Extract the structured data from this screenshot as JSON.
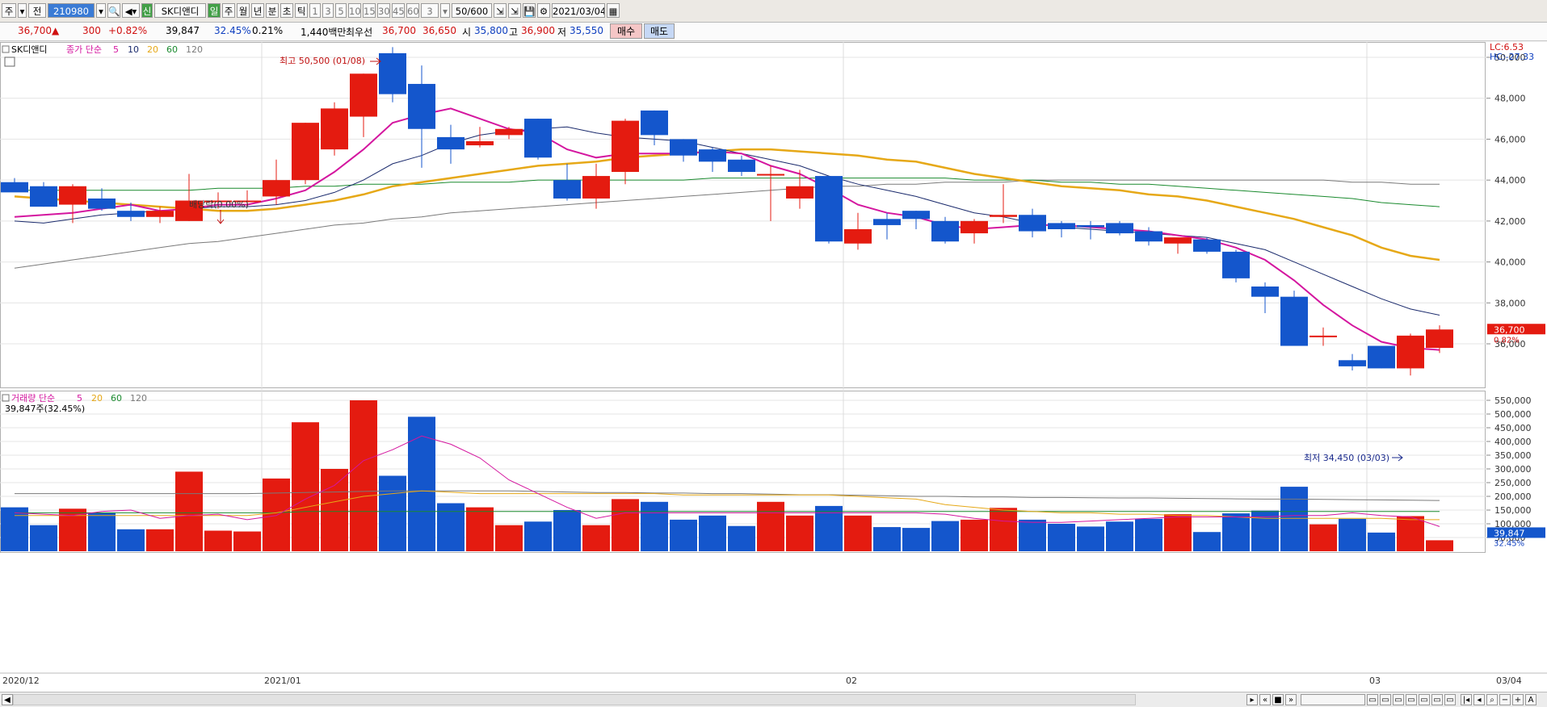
{
  "toolbar": {
    "items": [
      "주",
      "▾",
      "전",
      "210980",
      "▾",
      "🔍",
      "◀▾",
      "신",
      "SK디앤디",
      "일",
      "주",
      "월",
      "년",
      "분",
      "초",
      "틱",
      "1",
      "3",
      "5",
      "10",
      "15",
      "30",
      "45",
      "60",
      "3",
      "▾",
      "50/600",
      "⇲",
      "⇲",
      "💾",
      "⚙",
      "2021/03/04",
      "▦"
    ]
  },
  "info": {
    "price": "36,700",
    "arrow": "▲",
    "change": "300",
    "change_pct": "+0.82%",
    "volume": "39,847",
    "vol_ratio": "32.45%",
    "turnover": "0.21%",
    "amount": "1,440백만",
    "best_label": "최우선",
    "ask": "36,700",
    "bid": "36,650",
    "open_label": "시",
    "open": "35,800",
    "high_label": "고",
    "high": "36,900",
    "low_label": "저",
    "low": "35,550",
    "buy_label": "매수",
    "sell_label": "매도"
  },
  "price_legend": {
    "name": "SK디앤디",
    "ma_label": "종가 단순",
    "periods": [
      "5",
      "10",
      "20",
      "60",
      "120"
    ]
  },
  "volume_legend": {
    "name": "거래량 단순",
    "periods": [
      "5",
      "20",
      "60",
      "120"
    ],
    "current": "39,847주(32.45%)"
  },
  "annotations": {
    "high": "최고 50,500 (01/08)",
    "low": "최저 34,450 (03/03)",
    "dividend": "배당락(0.00%)",
    "lc": "LC:6.53",
    "hc": "HC:-27.33",
    "price_badge": "36,700",
    "price_badge_pct": "0.82%",
    "vol_badge": "39,847",
    "vol_badge_pct": "32.45%"
  },
  "x_axis_labels": [
    {
      "text": "2020/12",
      "index": 0
    },
    {
      "text": "2021/01",
      "index": 9
    },
    {
      "text": "02",
      "index": 29
    },
    {
      "text": "03",
      "index": 47
    },
    {
      "text": "03/04",
      "index": 51
    }
  ],
  "colors": {
    "up": "#e41b10",
    "down": "#1456cc",
    "ma5": "#d4169f",
    "ma10": "#1a2a6c",
    "ma20": "#e6a817",
    "ma60": "#1a8a2e",
    "ma120": "#7a7a7a"
  },
  "chart_data": [
    {
      "type": "candlestick",
      "title": "SK디앤디",
      "ylim": [
        34000,
        51500
      ],
      "y_ticks": [
        36000,
        38000,
        40000,
        42000,
        44000,
        46000,
        48000,
        50000
      ],
      "candles": [
        {
          "o": 43900,
          "h": 44100,
          "l": 43500,
          "c": 43400
        },
        {
          "o": 43700,
          "h": 43900,
          "l": 42700,
          "c": 42700
        },
        {
          "o": 42800,
          "h": 43800,
          "l": 41900,
          "c": 43700
        },
        {
          "o": 43100,
          "h": 43600,
          "l": 42500,
          "c": 42600
        },
        {
          "o": 42500,
          "h": 42900,
          "l": 42000,
          "c": 42200
        },
        {
          "o": 42200,
          "h": 42700,
          "l": 41900,
          "c": 42500
        },
        {
          "o": 42000,
          "h": 44300,
          "l": 42000,
          "c": 43000
        },
        {
          "o": 43000,
          "h": 43400,
          "l": 42600,
          "c": 43000
        },
        {
          "o": 43000,
          "h": 43500,
          "l": 42700,
          "c": 43000
        },
        {
          "o": 43200,
          "h": 45000,
          "l": 42800,
          "c": 44000
        },
        {
          "o": 44000,
          "h": 46800,
          "l": 43800,
          "c": 46800
        },
        {
          "o": 45500,
          "h": 47800,
          "l": 45200,
          "c": 47500
        },
        {
          "o": 47100,
          "h": 49200,
          "l": 46100,
          "c": 49200
        },
        {
          "o": 50200,
          "h": 50500,
          "l": 47800,
          "c": 48200
        },
        {
          "o": 48700,
          "h": 49600,
          "l": 44600,
          "c": 46500
        },
        {
          "o": 46100,
          "h": 46700,
          "l": 44800,
          "c": 45500
        },
        {
          "o": 45700,
          "h": 46600,
          "l": 45600,
          "c": 45900
        },
        {
          "o": 46200,
          "h": 46600,
          "l": 46000,
          "c": 46500
        },
        {
          "o": 47000,
          "h": 47000,
          "l": 45000,
          "c": 45100
        },
        {
          "o": 44000,
          "h": 44800,
          "l": 43000,
          "c": 43100
        },
        {
          "o": 43100,
          "h": 44800,
          "l": 42600,
          "c": 44200
        },
        {
          "o": 44400,
          "h": 47000,
          "l": 43800,
          "c": 46900
        },
        {
          "o": 47400,
          "h": 47400,
          "l": 45700,
          "c": 46200
        },
        {
          "o": 46000,
          "h": 46000,
          "l": 44900,
          "c": 45200
        },
        {
          "o": 45500,
          "h": 45600,
          "l": 44400,
          "c": 44900
        },
        {
          "o": 45000,
          "h": 45200,
          "l": 44200,
          "c": 44400
        },
        {
          "o": 44300,
          "h": 44700,
          "l": 42000,
          "c": 44300
        },
        {
          "o": 43100,
          "h": 44500,
          "l": 42600,
          "c": 43700
        },
        {
          "o": 44200,
          "h": 44200,
          "l": 40900,
          "c": 41000
        },
        {
          "o": 40900,
          "h": 42400,
          "l": 40600,
          "c": 41600
        },
        {
          "o": 42100,
          "h": 42400,
          "l": 41100,
          "c": 41800
        },
        {
          "o": 42500,
          "h": 42500,
          "l": 41600,
          "c": 42100
        },
        {
          "o": 42000,
          "h": 42200,
          "l": 40900,
          "c": 41000
        },
        {
          "o": 41400,
          "h": 42100,
          "l": 40900,
          "c": 42000
        },
        {
          "o": 42200,
          "h": 43800,
          "l": 41900,
          "c": 42300
        },
        {
          "o": 42300,
          "h": 42600,
          "l": 41200,
          "c": 41500
        },
        {
          "o": 41900,
          "h": 42000,
          "l": 41200,
          "c": 41600
        },
        {
          "o": 41800,
          "h": 42000,
          "l": 41100,
          "c": 41700
        },
        {
          "o": 41900,
          "h": 42000,
          "l": 41300,
          "c": 41400
        },
        {
          "o": 41500,
          "h": 41700,
          "l": 40800,
          "c": 41000
        },
        {
          "o": 40900,
          "h": 41100,
          "l": 40400,
          "c": 41200
        },
        {
          "o": 41100,
          "h": 41200,
          "l": 40400,
          "c": 40500
        },
        {
          "o": 40500,
          "h": 40600,
          "l": 39000,
          "c": 39200
        },
        {
          "o": 38800,
          "h": 39000,
          "l": 37500,
          "c": 38300
        },
        {
          "o": 38300,
          "h": 38600,
          "l": 35900,
          "c": 35900
        },
        {
          "o": 36400,
          "h": 36800,
          "l": 35900,
          "c": 36400
        },
        {
          "o": 35200,
          "h": 35500,
          "l": 34700,
          "c": 34900
        },
        {
          "o": 35900,
          "h": 35900,
          "l": 34800,
          "c": 34800
        },
        {
          "o": 34800,
          "h": 36500,
          "l": 34450,
          "c": 36400
        },
        {
          "o": 35800,
          "h": 36900,
          "l": 35550,
          "c": 36700
        }
      ],
      "ma5": [
        42200,
        42300,
        42400,
        42600,
        42800,
        42500,
        42600,
        42800,
        42800,
        43100,
        43500,
        44400,
        45500,
        46800,
        47200,
        47500,
        47000,
        46500,
        46300,
        45500,
        45100,
        45300,
        45300,
        45300,
        45400,
        45300,
        44700,
        44300,
        43600,
        42800,
        42400,
        42200,
        41800,
        41600,
        41700,
        41800,
        41800,
        41700,
        41600,
        41500,
        41300,
        41100,
        40700,
        40100,
        39100,
        37900,
        36900,
        36100,
        35800,
        35700
      ],
      "ma10": [
        42000,
        41900,
        42100,
        42300,
        42400,
        42500,
        42600,
        42700,
        42700,
        42800,
        43000,
        43400,
        44000,
        44800,
        45200,
        45800,
        46200,
        46400,
        46500,
        46600,
        46300,
        46100,
        46000,
        45900,
        45600,
        45300,
        45000,
        44700,
        44200,
        43800,
        43500,
        43200,
        42800,
        42400,
        42200,
        41900,
        41700,
        41600,
        41500,
        41400,
        41300,
        41200,
        40900,
        40600,
        40000,
        39400,
        38800,
        38200,
        37700,
        37400
      ],
      "ma20": [
        43200,
        43100,
        43000,
        42900,
        42800,
        42700,
        42600,
        42500,
        42500,
        42600,
        42800,
        43000,
        43300,
        43700,
        43900,
        44100,
        44300,
        44500,
        44700,
        44800,
        44900,
        45100,
        45200,
        45300,
        45400,
        45500,
        45500,
        45400,
        45300,
        45200,
        45000,
        44900,
        44600,
        44300,
        44100,
        43900,
        43700,
        43600,
        43500,
        43300,
        43200,
        43000,
        42700,
        42400,
        42100,
        41700,
        41300,
        40700,
        40300,
        40100
      ],
      "ma60": [
        43500,
        43500,
        43500,
        43500,
        43500,
        43500,
        43500,
        43600,
        43600,
        43600,
        43700,
        43700,
        43800,
        43800,
        43800,
        43900,
        43900,
        43900,
        44000,
        44000,
        44000,
        44000,
        44000,
        44000,
        44100,
        44100,
        44100,
        44100,
        44100,
        44100,
        44100,
        44100,
        44100,
        44000,
        44000,
        44000,
        43900,
        43900,
        43800,
        43800,
        43700,
        43600,
        43500,
        43400,
        43300,
        43200,
        43100,
        42900,
        42800,
        42700
      ],
      "ma120": [
        39700,
        39900,
        40100,
        40300,
        40500,
        40700,
        40900,
        41000,
        41200,
        41400,
        41600,
        41800,
        41900,
        42100,
        42200,
        42400,
        42500,
        42600,
        42700,
        42800,
        42900,
        43000,
        43100,
        43200,
        43300,
        43400,
        43500,
        43600,
        43700,
        43700,
        43800,
        43800,
        43900,
        43900,
        43900,
        44000,
        44000,
        44000,
        44000,
        44000,
        44000,
        44000,
        44000,
        44000,
        44000,
        44000,
        43900,
        43900,
        43800,
        43800
      ]
    },
    {
      "type": "bar",
      "title": "거래량",
      "ylim": [
        0,
        580000
      ],
      "y_ticks": [
        50000,
        100000,
        150000,
        200000,
        250000,
        300000,
        350000,
        400000,
        450000,
        500000,
        550000
      ],
      "volumes": [
        160000,
        95000,
        155000,
        140000,
        80000,
        80000,
        290000,
        75000,
        72000,
        265000,
        470000,
        300000,
        550000,
        275000,
        490000,
        175000,
        160000,
        95000,
        108000,
        150000,
        95000,
        190000,
        180000,
        115000,
        130000,
        92000,
        180000,
        130000,
        165000,
        130000,
        88000,
        85000,
        110000,
        115000,
        158000,
        115000,
        100000,
        90000,
        108000,
        118000,
        135000,
        70000,
        138000,
        148000,
        235000,
        98000,
        118000,
        68000,
        128000,
        40000
      ],
      "ma5": [
        140000,
        135000,
        130000,
        145000,
        150000,
        120000,
        130000,
        135000,
        115000,
        130000,
        190000,
        240000,
        330000,
        370000,
        420000,
        390000,
        340000,
        260000,
        210000,
        160000,
        120000,
        140000,
        140000,
        140000,
        140000,
        140000,
        140000,
        140000,
        140000,
        140000,
        140000,
        140000,
        135000,
        120000,
        110000,
        105000,
        105000,
        110000,
        115000,
        120000,
        125000,
        125000,
        125000,
        125000,
        130000,
        130000,
        140000,
        130000,
        125000,
        90000
      ],
      "ma20": [
        130000,
        130000,
        130000,
        130000,
        130000,
        130000,
        130000,
        130000,
        130000,
        140000,
        160000,
        180000,
        200000,
        210000,
        220000,
        215000,
        210000,
        210000,
        210000,
        210000,
        210000,
        210000,
        210000,
        205000,
        205000,
        205000,
        205000,
        205000,
        205000,
        200000,
        195000,
        190000,
        170000,
        160000,
        150000,
        145000,
        140000,
        140000,
        135000,
        135000,
        130000,
        130000,
        125000,
        120000,
        120000,
        120000,
        120000,
        120000,
        115000,
        115000
      ],
      "ma60": [
        140000,
        140000,
        140000,
        140000,
        140000,
        140000,
        140000,
        140000,
        140000,
        140000,
        145000,
        145000,
        145000,
        145000,
        145000,
        145000,
        145000,
        145000,
        145000,
        145000,
        145000,
        145000,
        145000,
        145000,
        145000,
        145000,
        145000,
        145000,
        145000,
        145000,
        145000,
        145000,
        145000,
        145000,
        145000,
        145000,
        145000,
        145000,
        145000,
        145000,
        145000,
        145000,
        145000,
        145000,
        145000,
        145000,
        145000,
        145000,
        145000,
        145000
      ],
      "ma120": [
        210000,
        210000,
        210000,
        210000,
        210000,
        210000,
        210000,
        210000,
        210000,
        212000,
        214000,
        216000,
        218000,
        220000,
        220000,
        220000,
        220000,
        220000,
        218000,
        216000,
        214000,
        214000,
        212000,
        212000,
        210000,
        210000,
        208000,
        206000,
        206000,
        204000,
        202000,
        200000,
        200000,
        198000,
        198000,
        196000,
        196000,
        195000,
        194000,
        194000,
        193000,
        192000,
        191000,
        190000,
        190000,
        189000,
        188000,
        187000,
        186000,
        185000
      ]
    }
  ]
}
